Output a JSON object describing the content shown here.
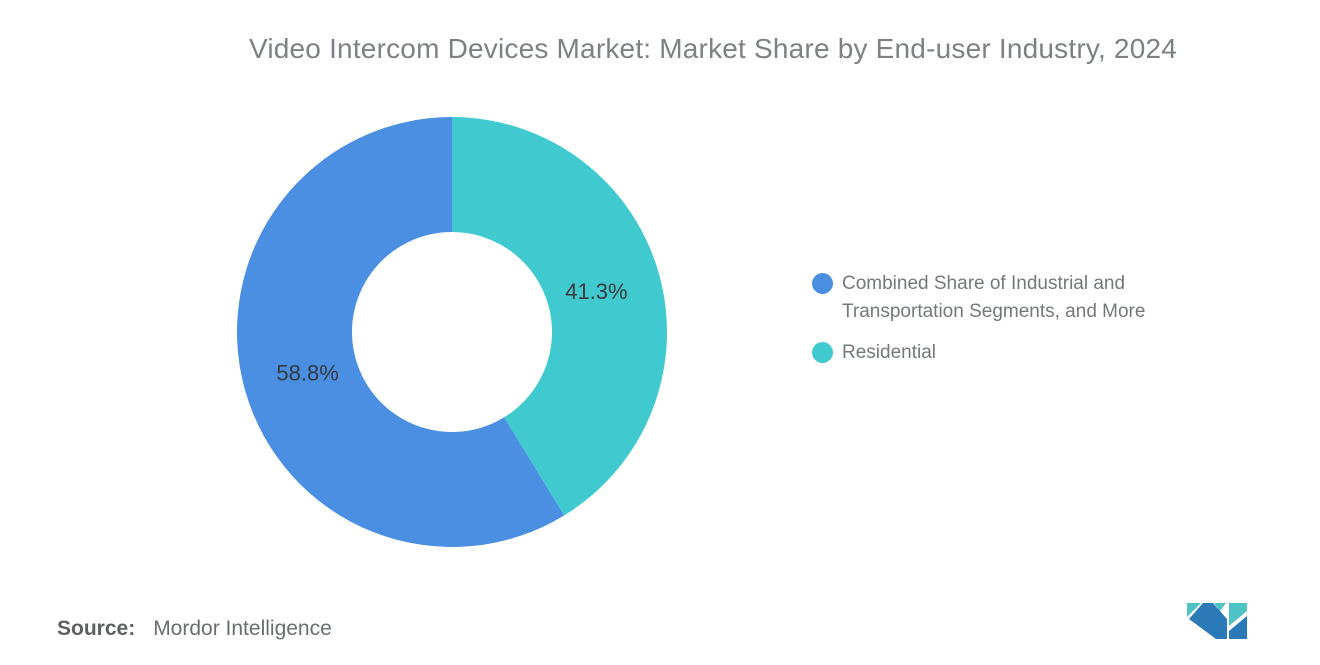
{
  "chart_data": {
    "type": "pie",
    "subtype": "donut",
    "title": "Video Intercom Devices Market: Market Share by End-user Industry, 2024",
    "start": "top",
    "direction": "counterclockwise",
    "legend_position": "right",
    "slices": [
      {
        "label": "Combined Share of Industrial and Transportation Segments, and More",
        "value": 58.8,
        "value_label": "58.8%",
        "color": "#4A8FE2"
      },
      {
        "label": "Residential",
        "value": 41.3,
        "value_label": "41.3%",
        "color": "#40CACF"
      }
    ]
  },
  "source": {
    "label": "Source:",
    "value": "Mordor Intelligence"
  },
  "logo": {
    "icon": "mordor-intelligence-logo",
    "teal": "#4EC3C6",
    "blue": "#2B79B6"
  }
}
